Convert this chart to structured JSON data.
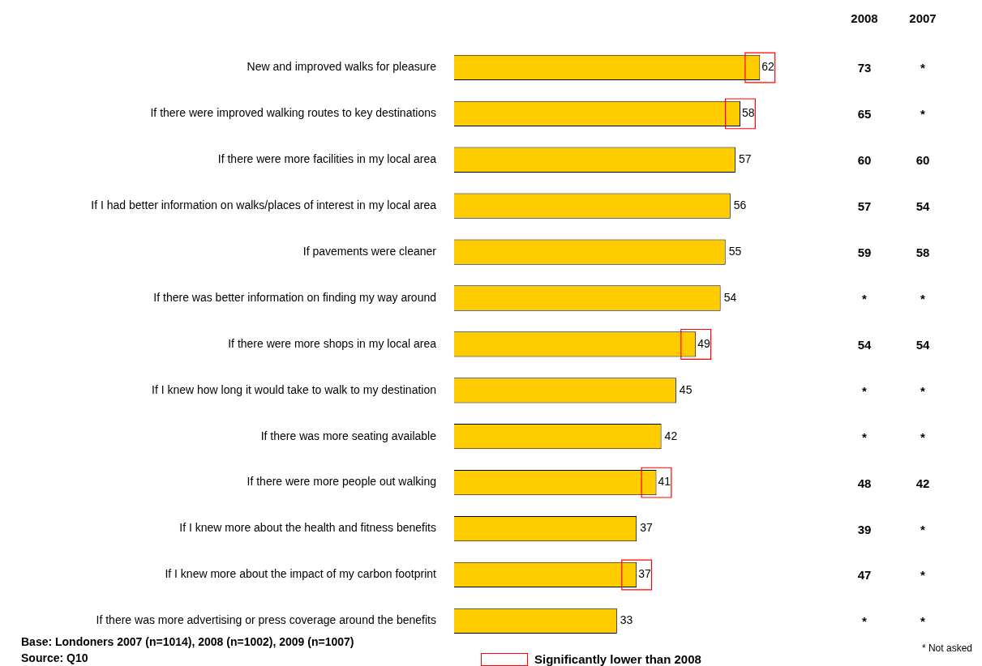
{
  "chart_data": [
    {
      "type": "bar",
      "orientation": "horizontal",
      "categories": [
        "New and improved walks for pleasure",
        "If there were improved walking routes to key destinations",
        "If there were more facilities in my local area",
        "If I had better information on walks/places of interest in my local area",
        "If pavements were cleaner",
        "If there was better information on finding my way around",
        "If there were more shops in my local area",
        "If I knew how long it would take to walk to my destination",
        "If there was more seating available",
        "If there were more people out walking",
        "If I knew more about the health and fitness benefits",
        "If I knew more about the impact of my carbon footprint",
        "If there was more advertising or press coverage around the benefits"
      ],
      "series": [
        {
          "color": "#ffcc00",
          "values": [
            62,
            58,
            57,
            56,
            55,
            54,
            49,
            45,
            42,
            41,
            37,
            37,
            33
          ],
          "value_labels": [
            null,
            null,
            "57",
            "56",
            "55",
            "54",
            null,
            "45",
            "42",
            null,
            "37",
            null,
            "33"
          ]
        },
        {
          "name": "Significantly lower than 2008",
          "type": "scatter",
          "marker": "square",
          "color": "#ff0000",
          "values": [
            62,
            58,
            null,
            null,
            null,
            null,
            49,
            null,
            null,
            41,
            null,
            37,
            null
          ],
          "value_labels": [
            "62",
            "58",
            null,
            null,
            null,
            null,
            "49",
            null,
            null,
            "41",
            null,
            "37",
            null
          ]
        }
      ],
      "tick_labels": "y",
      "legend": "bottom",
      "annotations": [
        "Base: Londoners 2007 (n=1014), 2008 (n=1002), 2009 (n=1007)",
        "Source: Q10"
      ]
    },
    {
      "type": "other",
      "categories": [
        "2008",
        "2007"
      ],
      "cell_labels": [
        [
          "73",
          "*"
        ],
        [
          "65",
          "*"
        ],
        [
          "60",
          "60"
        ],
        [
          "57",
          "54"
        ],
        [
          "59",
          "58"
        ],
        [
          "*",
          "*"
        ],
        [
          "54",
          "54"
        ],
        [
          "*",
          "*"
        ],
        [
          "*",
          "*"
        ],
        [
          "48",
          "42"
        ],
        [
          "39",
          "*"
        ],
        [
          "47",
          "*"
        ],
        [
          "*",
          "*"
        ]
      ],
      "annotations": [
        "* Not asked"
      ]
    }
  ]
}
